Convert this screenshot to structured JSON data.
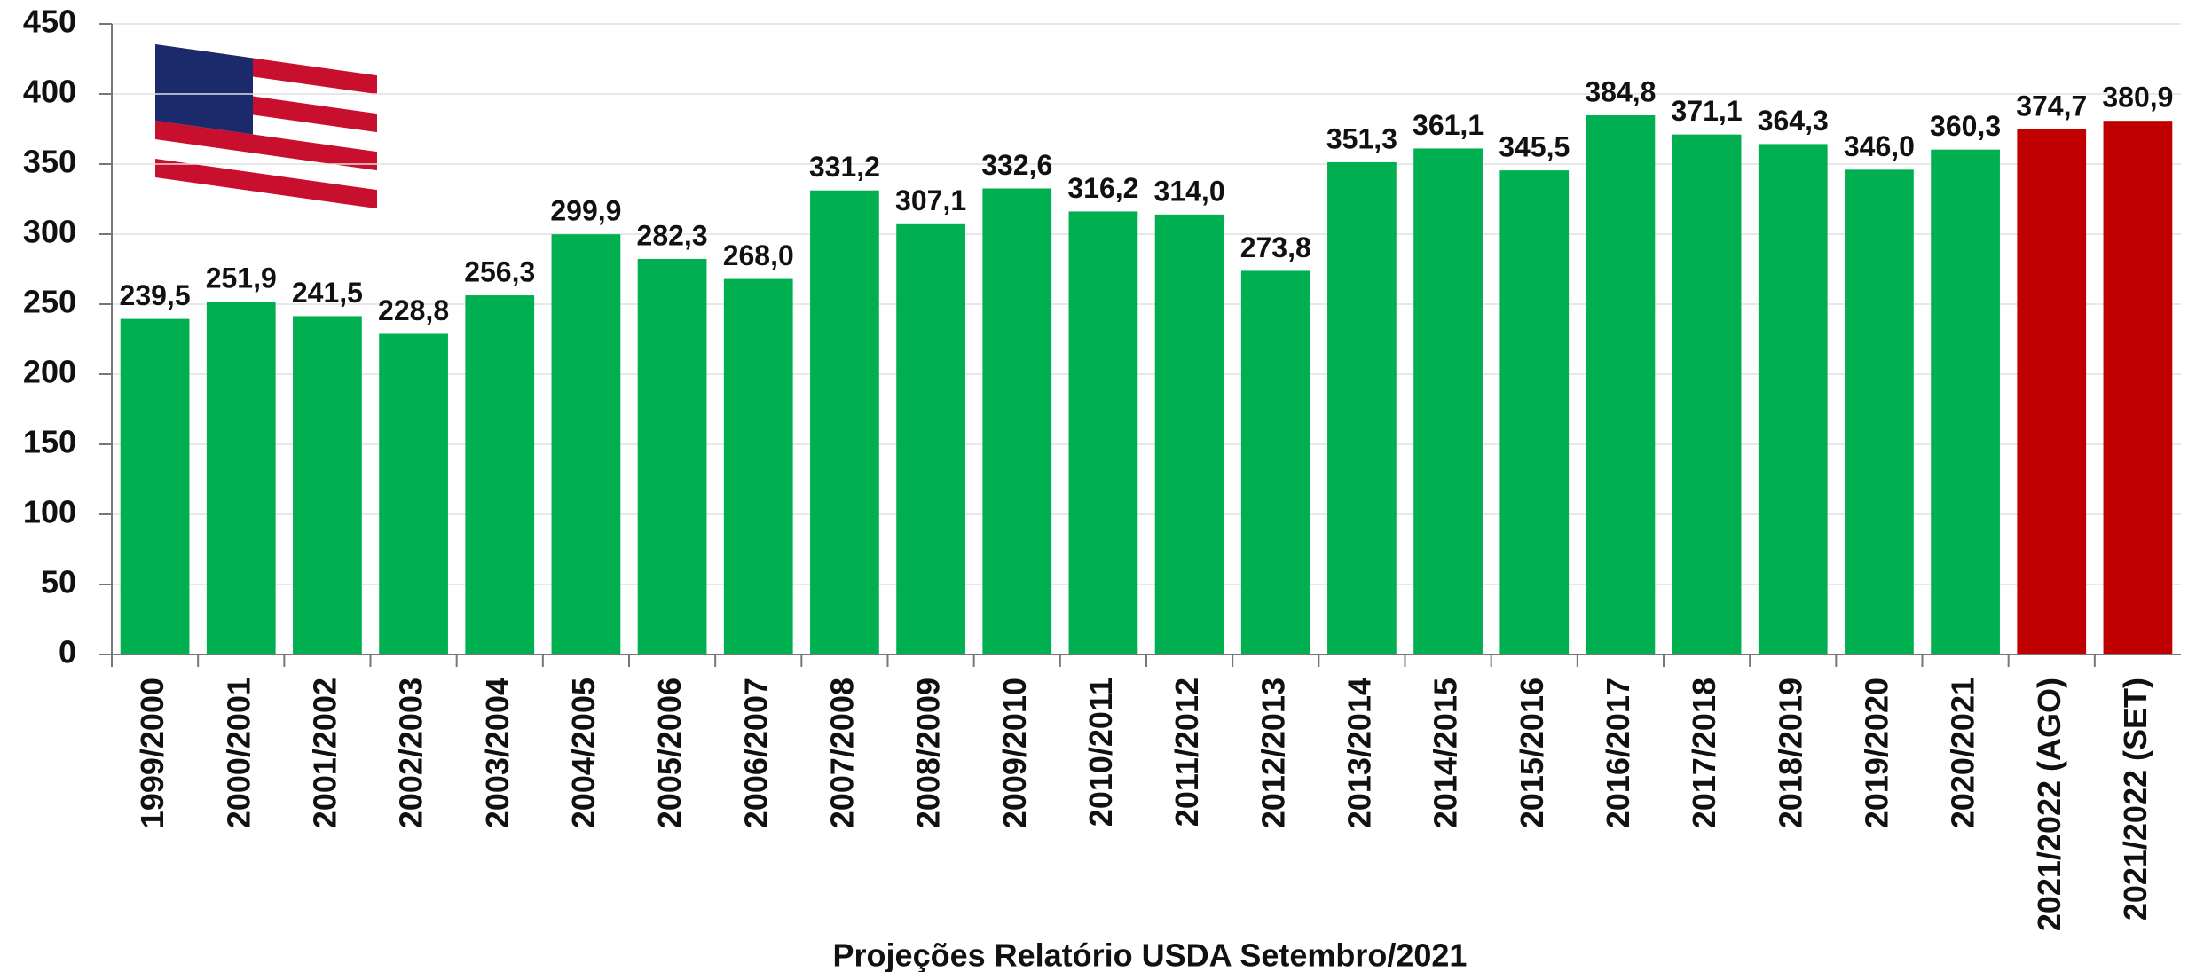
{
  "chart_data": {
    "type": "bar",
    "x_label": "Projeções Relatório USDA Setembro/2021",
    "categories": [
      "1999/2000",
      "2000/2001",
      "2001/2002",
      "2002/2003",
      "2003/2004",
      "2004/2005",
      "2005/2006",
      "2006/2007",
      "2007/2008",
      "2008/2009",
      "2009/2010",
      "2010/2011",
      "2011/2012",
      "2012/2013",
      "2013/2014",
      "2014/2015",
      "2015/2016",
      "2016/2017",
      "2017/2018",
      "2018/2019",
      "2019/2020",
      "2020/2021",
      "2021/2022 (AGO)",
      "2021/2022 (SET)"
    ],
    "values": [
      239.5,
      251.9,
      241.5,
      228.8,
      256.3,
      299.9,
      282.3,
      268.0,
      331.2,
      307.1,
      332.6,
      316.2,
      314.0,
      273.8,
      351.3,
      361.1,
      345.5,
      384.8,
      371.1,
      364.3,
      346.0,
      360.3,
      374.7,
      380.9
    ],
    "value_labels": [
      "239,5",
      "251,9",
      "241,5",
      "228,8",
      "256,3",
      "299,9",
      "282,3",
      "268,0",
      "331,2",
      "307,1",
      "332,6",
      "316,2",
      "314,0",
      "273,8",
      "351,3",
      "361,1",
      "345,5",
      "384,8",
      "371,1",
      "364,3",
      "346,0",
      "360,3",
      "374,7",
      "380,9"
    ],
    "colors": [
      "#00b050",
      "#00b050",
      "#00b050",
      "#00b050",
      "#00b050",
      "#00b050",
      "#00b050",
      "#00b050",
      "#00b050",
      "#00b050",
      "#00b050",
      "#00b050",
      "#00b050",
      "#00b050",
      "#00b050",
      "#00b050",
      "#00b050",
      "#00b050",
      "#00b050",
      "#00b050",
      "#00b050",
      "#00b050",
      "#c00000",
      "#c00000"
    ],
    "ylim": [
      0,
      450
    ],
    "yticks": [
      0,
      50,
      100,
      150,
      200,
      250,
      300,
      350,
      400,
      450
    ],
    "grid": true
  }
}
